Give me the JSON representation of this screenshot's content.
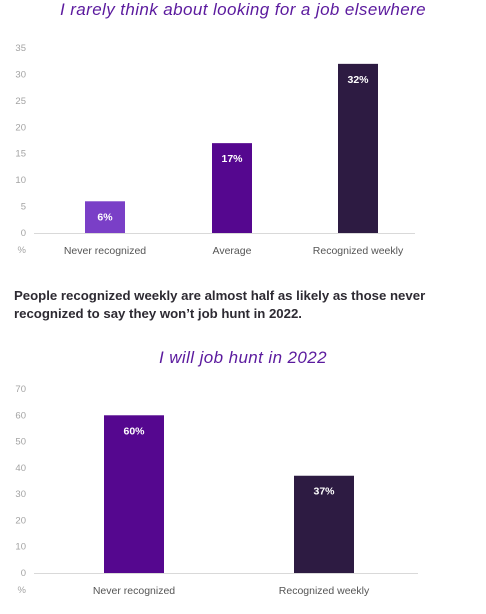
{
  "caption": "People recognized weekly are almost half as likely as those never recognized to say they won’t job hunt in 2022.",
  "chart_data": [
    {
      "type": "bar",
      "title": "I rarely think about looking for a job elsewhere",
      "categories": [
        "Never recognized",
        "Average",
        "Recognized weekly"
      ],
      "values": [
        6,
        17,
        32
      ],
      "data_labels": [
        "6%",
        "17%",
        "32%"
      ],
      "colors": [
        "#7a3fc7",
        "#55078f",
        "#2d1b42"
      ],
      "ylabel": "%",
      "ylim": [
        0,
        35
      ],
      "yticks": [
        0,
        5,
        10,
        15,
        20,
        25,
        30,
        35
      ],
      "grid": false
    },
    {
      "type": "bar",
      "title": "I will job hunt in 2022",
      "categories": [
        "Never recognized",
        "Recognized weekly"
      ],
      "values": [
        60,
        37
      ],
      "data_labels": [
        "60%",
        "37%"
      ],
      "colors": [
        "#55078f",
        "#2d1b42"
      ],
      "ylabel": "%",
      "ylim": [
        0,
        70
      ],
      "yticks": [
        0,
        10,
        20,
        30,
        40,
        50,
        60,
        70
      ],
      "grid": false
    }
  ]
}
